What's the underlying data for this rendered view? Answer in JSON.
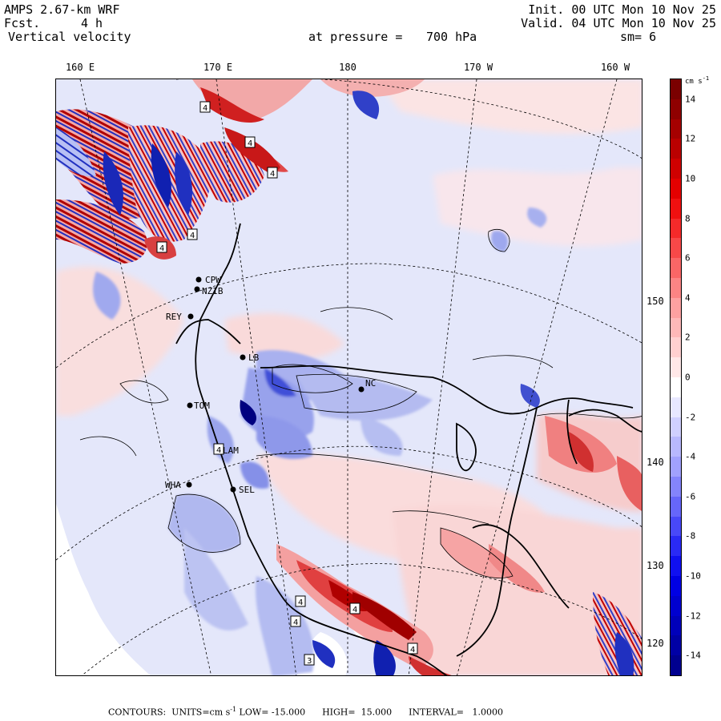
{
  "header": {
    "model": "AMPS 2.67-km WRF",
    "fcst_label": "Fcst.",
    "fcst_value": "4 h",
    "field": "Vertical velocity",
    "init": "Init. 00 UTC Mon 10 Nov 25",
    "valid": "Valid. 04 UTC Mon 10 Nov 25",
    "pressure_label": "at pressure =",
    "pressure_value": "700 hPa",
    "smoothing": "sm= 6"
  },
  "longitude_labels": [
    "160 E",
    "170 E",
    "180",
    "170 W",
    "160 W"
  ],
  "latitude_labels": [
    "150 W",
    "140 W",
    "130 W",
    "120 W"
  ],
  "colorbar": {
    "units": "cm s",
    "units_exp": "-1",
    "tick_labels": [
      "14",
      "12",
      "10",
      "8",
      "6",
      "4",
      "2",
      "0",
      "-2",
      "-4",
      "-6",
      "-8",
      "-10",
      "-12",
      "-14"
    ],
    "tick_values": [
      14,
      12,
      10,
      8,
      6,
      4,
      2,
      0,
      -2,
      -4,
      -6,
      -8,
      -10,
      -12,
      -14
    ],
    "min": -15,
    "max": 15,
    "colors_top_to_bottom": [
      "#7a0000",
      "#8f0000",
      "#a50000",
      "#ba0000",
      "#cf0000",
      "#e40000",
      "#f01010",
      "#f52a2a",
      "#f84848",
      "#fa6666",
      "#fc8484",
      "#fda1a1",
      "#feb8b8",
      "#ffd0d0",
      "#ffe8e8",
      "#ffffff",
      "#e8e8ff",
      "#d0d0ff",
      "#b8b8fe",
      "#a1a1fd",
      "#8484fc",
      "#6666fa",
      "#4848f8",
      "#2a2af5",
      "#1010f0",
      "#0000e4",
      "#0000cf",
      "#0000ba",
      "#0000a5",
      "#00008f"
    ]
  },
  "stations": [
    {
      "name": "CPW"
    },
    {
      "name": "NZIB"
    },
    {
      "name": "REY"
    },
    {
      "name": "LB"
    },
    {
      "name": "NC"
    },
    {
      "name": "TOM"
    },
    {
      "name": "LAM"
    },
    {
      "name": "WHA"
    },
    {
      "name": "SEL"
    }
  ],
  "extrema_markers": [
    "4",
    "4",
    "4",
    "4",
    "4",
    "4",
    "4",
    "4",
    "4",
    "3",
    "4"
  ],
  "footer": {
    "prefix": "CONTOURS:  UNITS=cm s",
    "units_exp": "-1",
    "rest": " LOW= -15.000      HIGH=  15.000      INTERVAL=   1.0000"
  },
  "colors": {
    "positive_strong": "#b00000",
    "positive_weak": "#fde0e0",
    "negative_strong": "#0000c0",
    "negative_weak": "#d8dcf7",
    "ice_shelf_bg": "#eef0fb"
  }
}
